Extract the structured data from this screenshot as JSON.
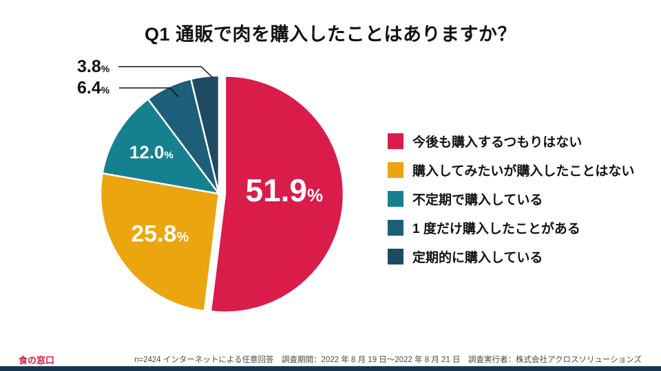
{
  "page": {
    "footnote": "n=2424 インターネットによる任意回答　調査期間：2022 年 8 月 19 日～2022 年 8 月 21 日　調査実行者：株式会社アクロスソリューションズ",
    "logo": "食の窓口",
    "logo_color": "#d9174a",
    "footer_bar_color": "#17374e"
  },
  "chart_data": {
    "type": "pie",
    "title": "Q1 通販で肉を購入したことはありますか？",
    "unit": "%",
    "start_angle_deg": 0,
    "direction": "clockwise",
    "exploded_slice_index": 0,
    "legend_position": "right",
    "slices": [
      {
        "label": "今後も購入するつもりはない",
        "value": 51.9,
        "color": "#d91c49",
        "label_inside": true
      },
      {
        "label": "購入してみたいが購入したことはない",
        "value": 25.8,
        "color": "#eba50e",
        "label_inside": true
      },
      {
        "label": "不定期で購入している",
        "value": 12.0,
        "color": "#16818e",
        "label_inside": true
      },
      {
        "label": "1 度だけ購入したことがある",
        "value": 6.4,
        "color": "#1d5e78",
        "label_inside": false
      },
      {
        "label": "定期的に購入している",
        "value": 3.8,
        "color": "#1f4a63",
        "label_inside": false
      }
    ]
  }
}
